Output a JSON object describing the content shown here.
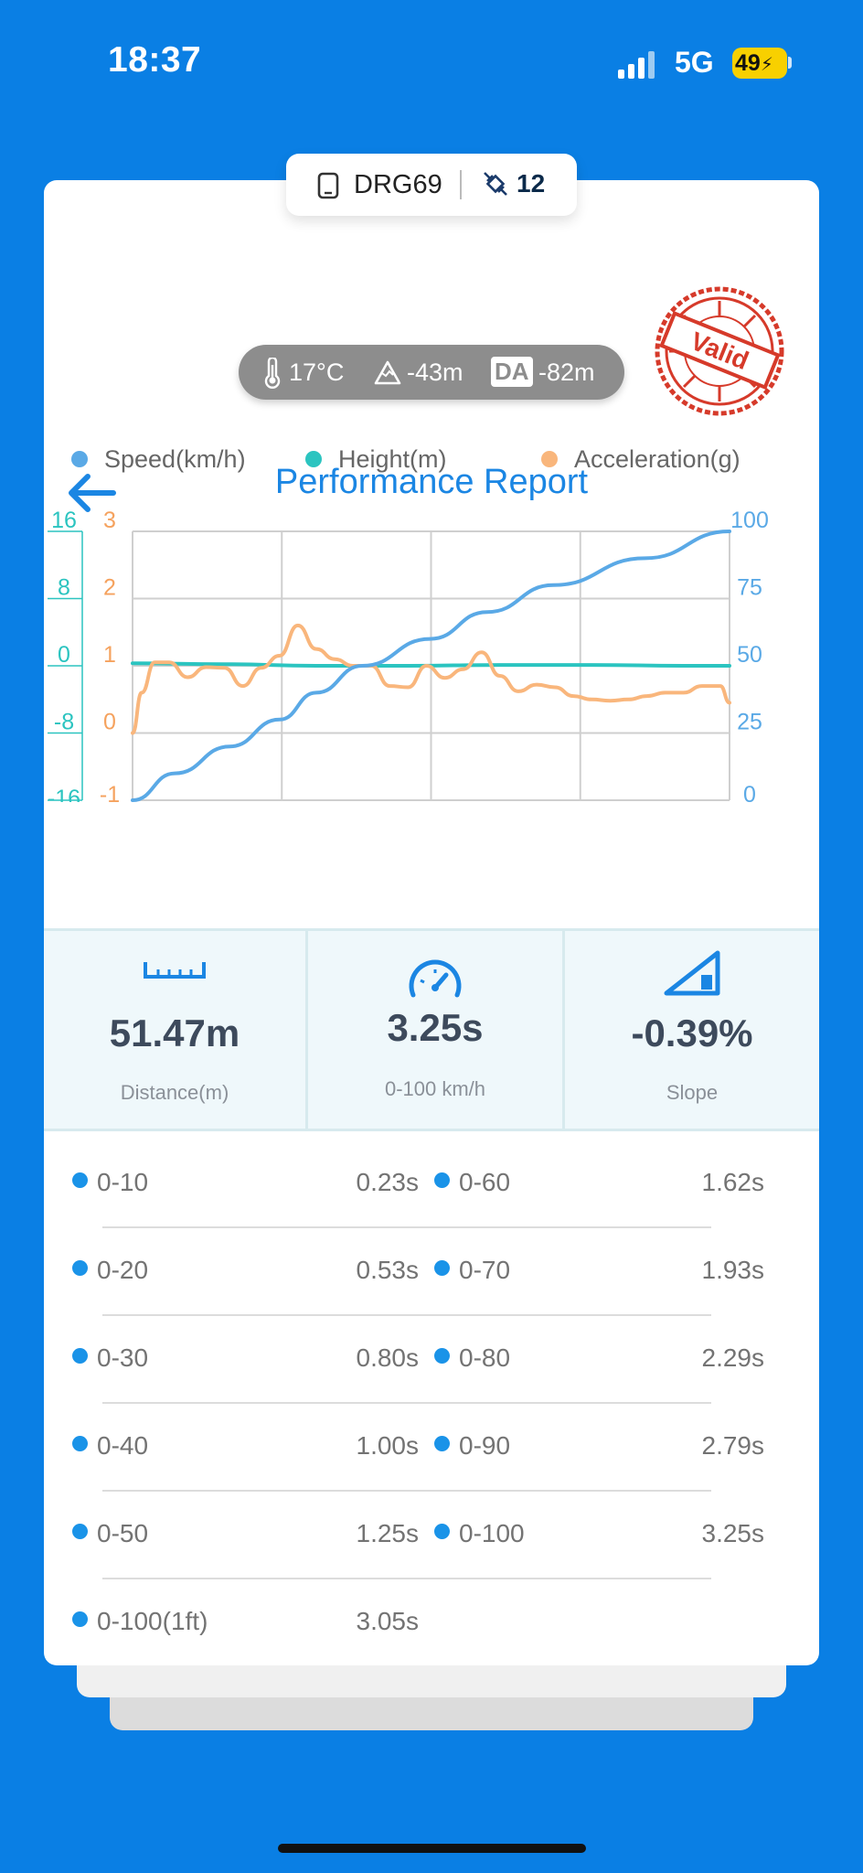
{
  "status_bar": {
    "time": "18:37",
    "network": "5G",
    "battery": "49"
  },
  "device": {
    "name": "DRG69",
    "satellites": "12"
  },
  "header": {
    "title": "Performance Report",
    "stamp_text": "Valid"
  },
  "conditions": {
    "temperature": "17°C",
    "altitude": "-43m",
    "da_label": "DA",
    "density_altitude": "-82m"
  },
  "legend": [
    {
      "label": "Speed(km/h)",
      "color": "#5aa9e6"
    },
    {
      "label": "Height(m)",
      "color": "#2bc4c0"
    },
    {
      "label": "Acceleration(g)",
      "color": "#f9b67c"
    }
  ],
  "chart_data": {
    "type": "line",
    "axes": {
      "height_ticks": [
        "16",
        "8",
        "0",
        "-8",
        "-16"
      ],
      "accel_ticks": [
        "3",
        "2",
        "1",
        "0",
        "-1"
      ],
      "speed_ticks": [
        "100",
        "75",
        "50",
        "25",
        "0"
      ],
      "height_range": [
        -16,
        16
      ],
      "accel_range": [
        -1,
        3
      ],
      "speed_range": [
        0,
        100
      ],
      "grid": true
    },
    "x_range": [
      0,
      3.25
    ],
    "series": [
      {
        "name": "Speed(km/h)",
        "color": "#5aa9e6",
        "x": [
          0,
          0.23,
          0.53,
          0.8,
          1.0,
          1.25,
          1.62,
          1.93,
          2.29,
          2.79,
          3.25
        ],
        "y": [
          0,
          10,
          20,
          30,
          40,
          50,
          60,
          70,
          80,
          90,
          100
        ]
      },
      {
        "name": "Height(m)",
        "color": "#2bc4c0",
        "x": [
          0,
          0.5,
          1.0,
          1.5,
          2.0,
          2.5,
          3.0,
          3.25
        ],
        "y": [
          0.3,
          0.2,
          0.0,
          0.0,
          0.1,
          0.1,
          0.0,
          0.0
        ]
      },
      {
        "name": "Acceleration(g)",
        "color": "#f9b67c",
        "x": [
          0,
          0.05,
          0.12,
          0.2,
          0.3,
          0.4,
          0.5,
          0.6,
          0.7,
          0.8,
          0.9,
          1.0,
          1.1,
          1.2,
          1.3,
          1.4,
          1.5,
          1.6,
          1.7,
          1.8,
          1.9,
          2.0,
          2.1,
          2.2,
          2.3,
          2.4,
          2.5,
          2.6,
          2.7,
          2.8,
          2.9,
          3.0,
          3.1,
          3.2,
          3.25
        ],
        "y": [
          0.0,
          0.6,
          1.05,
          1.05,
          0.83,
          0.98,
          0.97,
          0.7,
          0.97,
          1.15,
          1.6,
          1.25,
          1.1,
          1.0,
          1.0,
          0.7,
          0.68,
          1.0,
          0.82,
          0.95,
          1.2,
          0.85,
          0.62,
          0.72,
          0.68,
          0.55,
          0.5,
          0.48,
          0.5,
          0.55,
          0.6,
          0.6,
          0.7,
          0.7,
          0.45
        ]
      }
    ]
  },
  "summary": [
    {
      "value": "51.47m",
      "label": "Distance(m)",
      "icon": "ruler-icon"
    },
    {
      "value": "3.25s",
      "label": "0-100 km/h",
      "icon": "speedometer-icon"
    },
    {
      "value": "-0.39%",
      "label": "Slope",
      "icon": "slope-icon"
    }
  ],
  "times": [
    {
      "left_label": "0-10",
      "left_value": "0.23s",
      "right_label": "0-60",
      "right_value": "1.62s"
    },
    {
      "left_label": "0-20",
      "left_value": "0.53s",
      "right_label": "0-70",
      "right_value": "1.93s"
    },
    {
      "left_label": "0-30",
      "left_value": "0.80s",
      "right_label": "0-80",
      "right_value": "2.29s"
    },
    {
      "left_label": "0-40",
      "left_value": "1.00s",
      "right_label": "0-90",
      "right_value": "2.79s"
    },
    {
      "left_label": "0-50",
      "left_value": "1.25s",
      "right_label": "0-100",
      "right_value": "3.25s"
    },
    {
      "left_label": "0-100(1ft)",
      "left_value": "3.05s",
      "right_label": "",
      "right_value": ""
    }
  ]
}
